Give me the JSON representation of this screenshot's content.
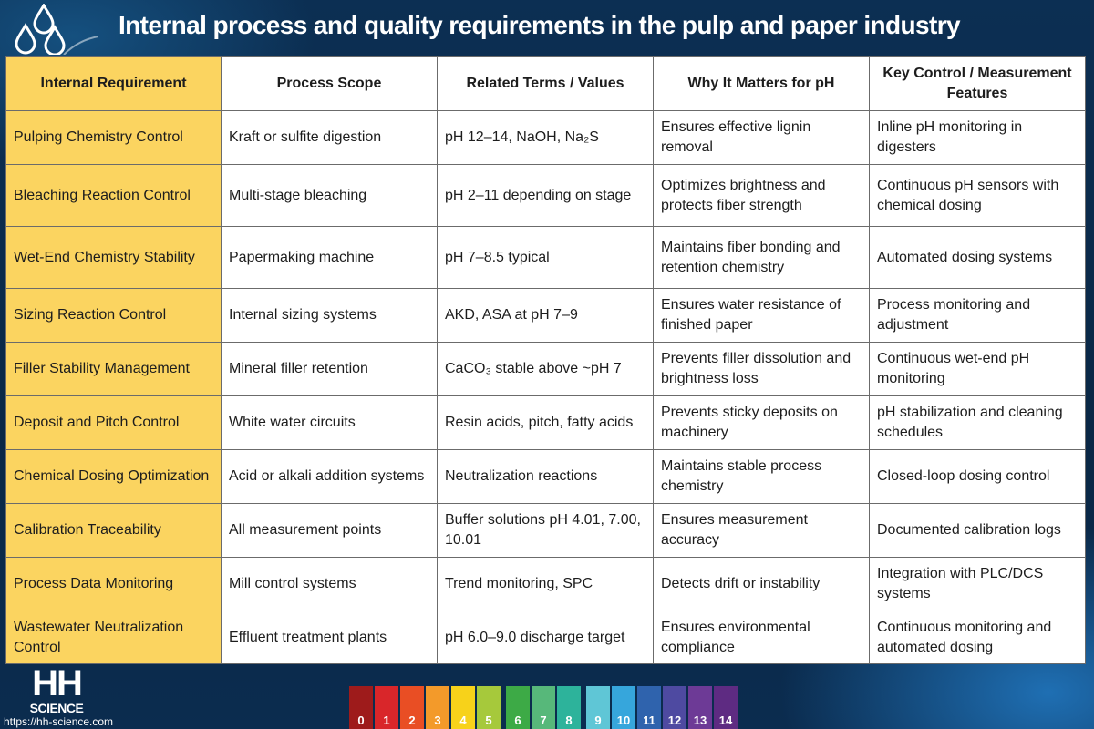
{
  "title": "Internal process and quality requirements in the pulp and paper industry",
  "table": {
    "headers": [
      "Internal Requirement",
      "Process Scope",
      "Related Terms / Values",
      "Why It Matters for pH",
      "Key Control / Measurement Features"
    ],
    "rows": [
      [
        "Pulping Chemistry Control",
        "Kraft or sulfite digestion",
        "pH 12–14, NaOH, Na₂S",
        "Ensures effective lignin removal",
        "Inline pH monitoring in digesters"
      ],
      [
        "Bleaching Reaction Control",
        "Multi-stage bleaching",
        "pH 2–11 depending on stage",
        "Optimizes brightness and protects fiber strength",
        "Continuous pH sensors with chemical dosing"
      ],
      [
        "Wet-End Chemistry Stability",
        "Papermaking machine",
        "pH 7–8.5 typical",
        "Maintains fiber bonding and retention chemistry",
        "Automated dosing systems"
      ],
      [
        "Sizing Reaction Control",
        "Internal sizing systems",
        "AKD, ASA at pH 7–9",
        "Ensures water resistance of finished paper",
        "Process monitoring and adjustment"
      ],
      [
        "Filler Stability Management",
        "Mineral filler retention",
        "CaCO₃ stable above ~pH 7",
        "Prevents filler dissolution and brightness loss",
        "Continuous wet-end pH monitoring"
      ],
      [
        "Deposit and Pitch Control",
        "White water circuits",
        "Resin acids, pitch, fatty acids",
        "Prevents sticky deposits on machinery",
        "pH stabilization and cleaning schedules"
      ],
      [
        "Chemical Dosing Optimization",
        "Acid or alkali addition systems",
        "Neutralization reactions",
        "Maintains stable process chemistry",
        "Closed-loop dosing control"
      ],
      [
        "Calibration Traceability",
        "All measurement points",
        "Buffer solutions pH 4.01, 7.00, 10.01",
        "Ensures measurement accuracy",
        "Documented calibration logs"
      ],
      [
        "Process Data Monitoring",
        "Mill control systems",
        "Trend monitoring, SPC",
        "Detects drift or instability",
        "Integration with PLC/DCS systems"
      ],
      [
        "Wastewater Neutralization Control",
        "Effluent treatment plants",
        "pH 6.0–9.0 discharge target",
        "Ensures environmental compliance",
        "Continuous monitoring and automated dosing"
      ]
    ]
  },
  "logo": {
    "line1": "HH",
    "line2": "SCIENCE"
  },
  "url": "https://hh-science.com",
  "ph_scale": [
    {
      "label": "0",
      "color": "#9e1b1b"
    },
    {
      "label": "1",
      "color": "#d9262a"
    },
    {
      "label": "2",
      "color": "#e94e24"
    },
    {
      "label": "3",
      "color": "#f39a2a"
    },
    {
      "label": "4",
      "color": "#f7d21a"
    },
    {
      "label": "5",
      "color": "#a6c93b"
    },
    {
      "label": "6",
      "color": "#3daa46"
    },
    {
      "label": "7",
      "color": "#57b87a"
    },
    {
      "label": "8",
      "color": "#2db39b"
    },
    {
      "label": "9",
      "color": "#5fc6d6"
    },
    {
      "label": "10",
      "color": "#36a6dc"
    },
    {
      "label": "11",
      "color": "#2f63ad"
    },
    {
      "label": "12",
      "color": "#4e4aa1"
    },
    {
      "label": "13",
      "color": "#6d3a96"
    },
    {
      "label": "14",
      "color": "#5e2b82"
    }
  ]
}
